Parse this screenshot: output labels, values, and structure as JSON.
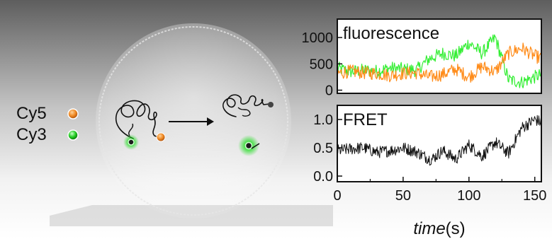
{
  "legend": [
    {
      "label": "Cy5",
      "color": "#f08a24"
    },
    {
      "label": "Cy3",
      "color": "#22cc22"
    }
  ],
  "colors": {
    "cy5": "#ff8c1a",
    "cy3": "#33ee33",
    "trace": "#111111"
  },
  "chart_data": [
    {
      "type": "line",
      "annotation": "fluorescence",
      "xlim": [
        0,
        155
      ],
      "ylim": [
        -60,
        1350
      ],
      "yticks": [
        0,
        500,
        1000
      ],
      "series": [
        {
          "name": "Cy3",
          "color": "#33ee33",
          "x": [
            0,
            10,
            20,
            30,
            40,
            50,
            60,
            70,
            80,
            90,
            100,
            110,
            120,
            130,
            140,
            150,
            155
          ],
          "y": [
            420,
            350,
            380,
            360,
            420,
            400,
            380,
            600,
            700,
            650,
            900,
            700,
            1000,
            200,
            150,
            250,
            300
          ]
        },
        {
          "name": "Cy5",
          "color": "#ff8c1a",
          "x": [
            0,
            10,
            20,
            30,
            40,
            50,
            60,
            70,
            80,
            90,
            100,
            110,
            120,
            130,
            140,
            150,
            155
          ],
          "y": [
            320,
            360,
            330,
            320,
            280,
            320,
            330,
            250,
            300,
            400,
            250,
            450,
            350,
            700,
            800,
            650,
            600
          ]
        }
      ]
    },
    {
      "type": "line",
      "annotation": "FRET",
      "xlabel": "time(s)",
      "xlim": [
        0,
        155
      ],
      "ylim": [
        -0.1,
        1.25
      ],
      "xticks": [
        0,
        50,
        100,
        150
      ],
      "yticks": [
        0.0,
        0.5,
        1.0
      ],
      "series": [
        {
          "color": "#111111",
          "x": [
            0,
            10,
            20,
            30,
            40,
            50,
            60,
            70,
            72,
            80,
            90,
            100,
            110,
            120,
            130,
            140,
            150,
            155
          ],
          "y": [
            0.45,
            0.48,
            0.5,
            0.42,
            0.45,
            0.5,
            0.43,
            0.3,
            0.3,
            0.45,
            0.3,
            0.55,
            0.35,
            0.6,
            0.4,
            0.85,
            1.0,
            0.95
          ]
        }
      ]
    }
  ]
}
